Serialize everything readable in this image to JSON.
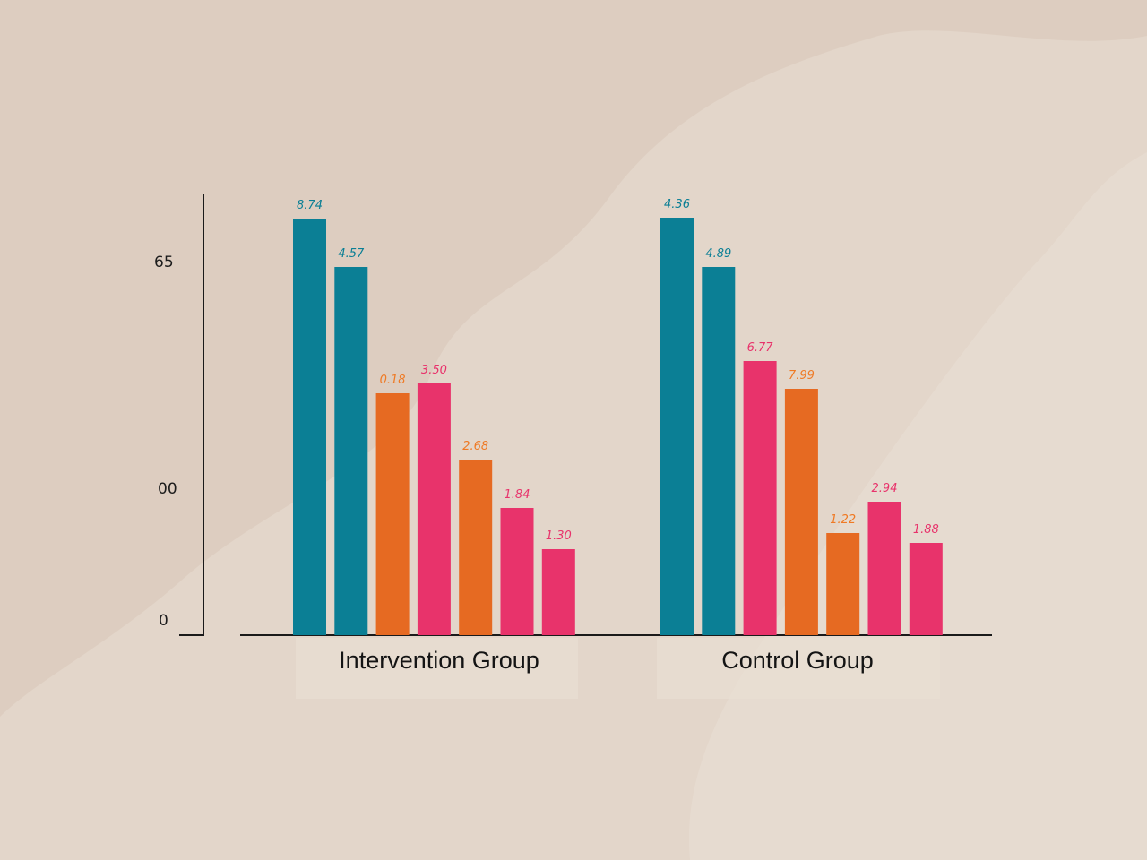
{
  "chart_data": {
    "type": "bar",
    "y_tick_labels": [
      "65",
      "00",
      "0"
    ],
    "groups": [
      {
        "label": "Intervention Group",
        "bars": [
          {
            "value_label": "8.74",
            "height": 465,
            "color": "#0b7f95"
          },
          {
            "value_label": "4.57",
            "height": 411,
            "color": "#0b7f95"
          },
          {
            "value_label": "0.18",
            "height": 270,
            "color": "#e66a22"
          },
          {
            "value_label": "3.50",
            "height": 281,
            "color": "#e8336b"
          },
          {
            "value_label": "2.68",
            "height": 196,
            "color": "#e66a22"
          },
          {
            "value_label": "1.84",
            "height": 142,
            "color": "#e8336b"
          },
          {
            "value_label": "1.30",
            "height": 96,
            "color": "#e8336b"
          }
        ]
      },
      {
        "label": "Control Group",
        "bars": [
          {
            "value_label": "4.36",
            "height": 466,
            "color": "#0b7f95"
          },
          {
            "value_label": "4.89",
            "height": 411,
            "color": "#0b7f95"
          },
          {
            "value_label": "6.77",
            "height": 306,
            "color": "#e8336b"
          },
          {
            "value_label": "7.99",
            "height": 275,
            "color": "#e66a22"
          },
          {
            "value_label": "1.22",
            "height": 114,
            "color": "#e66a22"
          },
          {
            "value_label": "2.94",
            "height": 149,
            "color": "#e8336b"
          },
          {
            "value_label": "1.88",
            "height": 103,
            "color": "#e8336b"
          }
        ]
      }
    ]
  }
}
